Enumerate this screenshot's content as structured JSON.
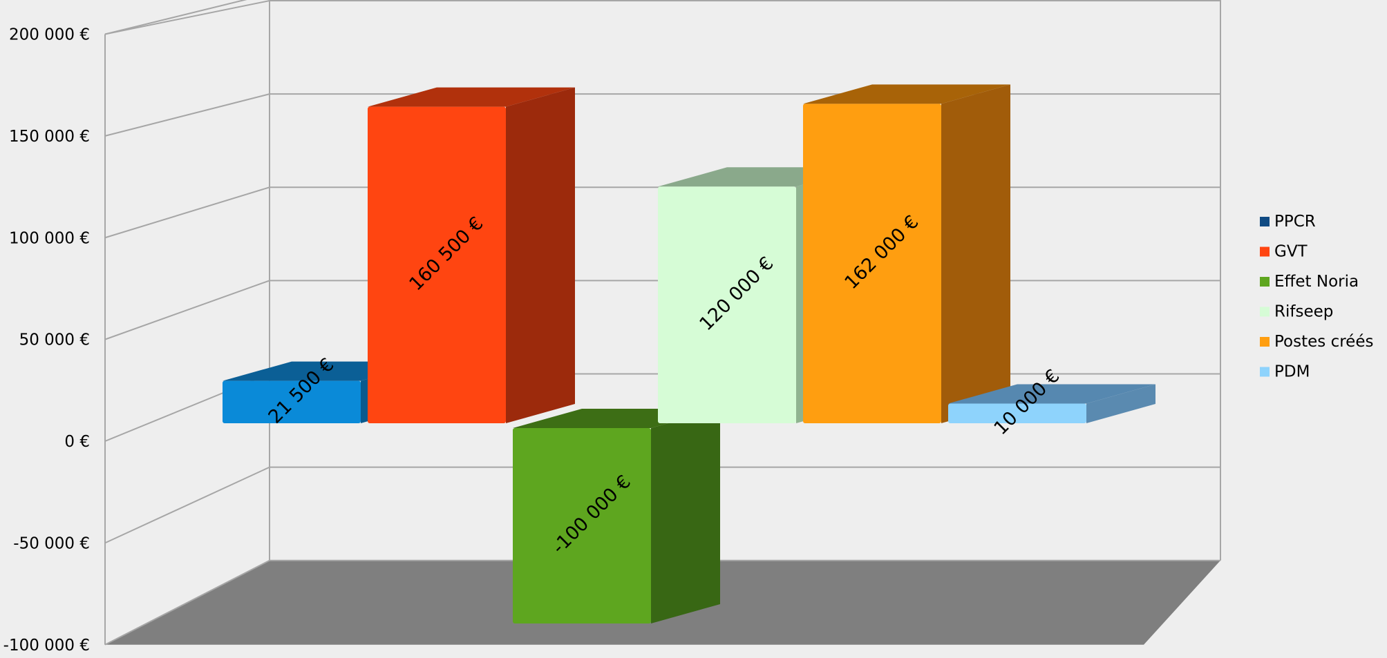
{
  "colors": {
    "background": "#eeeeee",
    "grid": "#a6a6a6",
    "floor": "#7f7f7f"
  },
  "chart_data": {
    "type": "bar",
    "title": "",
    "xlabel": "",
    "ylabel": "",
    "ylim": [
      -100000,
      200000
    ],
    "ytick_values": [
      -100000,
      -50000,
      0,
      50000,
      100000,
      150000,
      200000
    ],
    "ytick_labels": [
      "-100 000 €",
      "-50 000 €",
      "0 €",
      "50 000 €",
      "100 000 €",
      "150 000 €",
      "200 000 €"
    ],
    "grid": true,
    "three_d": true,
    "legend_position": "right",
    "series": [
      {
        "name": "PPCR",
        "value": 21500,
        "label": "21 500 €",
        "front_color": "#0a8ad8",
        "side_color": "#0a5a8e",
        "top_color": "#0b5f96",
        "legend_color": "#0f4a82"
      },
      {
        "name": "GVT",
        "value": 160500,
        "label": "160 500 €",
        "front_color": "#ff4511",
        "side_color": "#9c2a0c",
        "top_color": "#b1310c",
        "legend_color": "#ff4511"
      },
      {
        "name": "Effet Noria",
        "value": -100000,
        "label": "-100 000 €",
        "front_color": "#5ea61f",
        "side_color": "#386714",
        "top_color": "#3d6e15",
        "legend_color": "#5ea61f"
      },
      {
        "name": "Rifseep",
        "value": 120000,
        "label": "120 000 €",
        "front_color": "#d6fcd6",
        "side_color": "#90b390",
        "top_color": "#8aa98b",
        "legend_color": "#d6fcd6"
      },
      {
        "name": "Postes créés",
        "value": 162000,
        "label": "162 000 €",
        "front_color": "#ff9e10",
        "side_color": "#a15c0a",
        "top_color": "#a86308",
        "legend_color": "#ff9e10"
      },
      {
        "name": "PDM",
        "value": 10000,
        "label": "10 000 €",
        "front_color": "#8ed3fc",
        "side_color": "#5a8ab0",
        "top_color": "#5688b0",
        "legend_color": "#8ed3fc"
      }
    ]
  }
}
